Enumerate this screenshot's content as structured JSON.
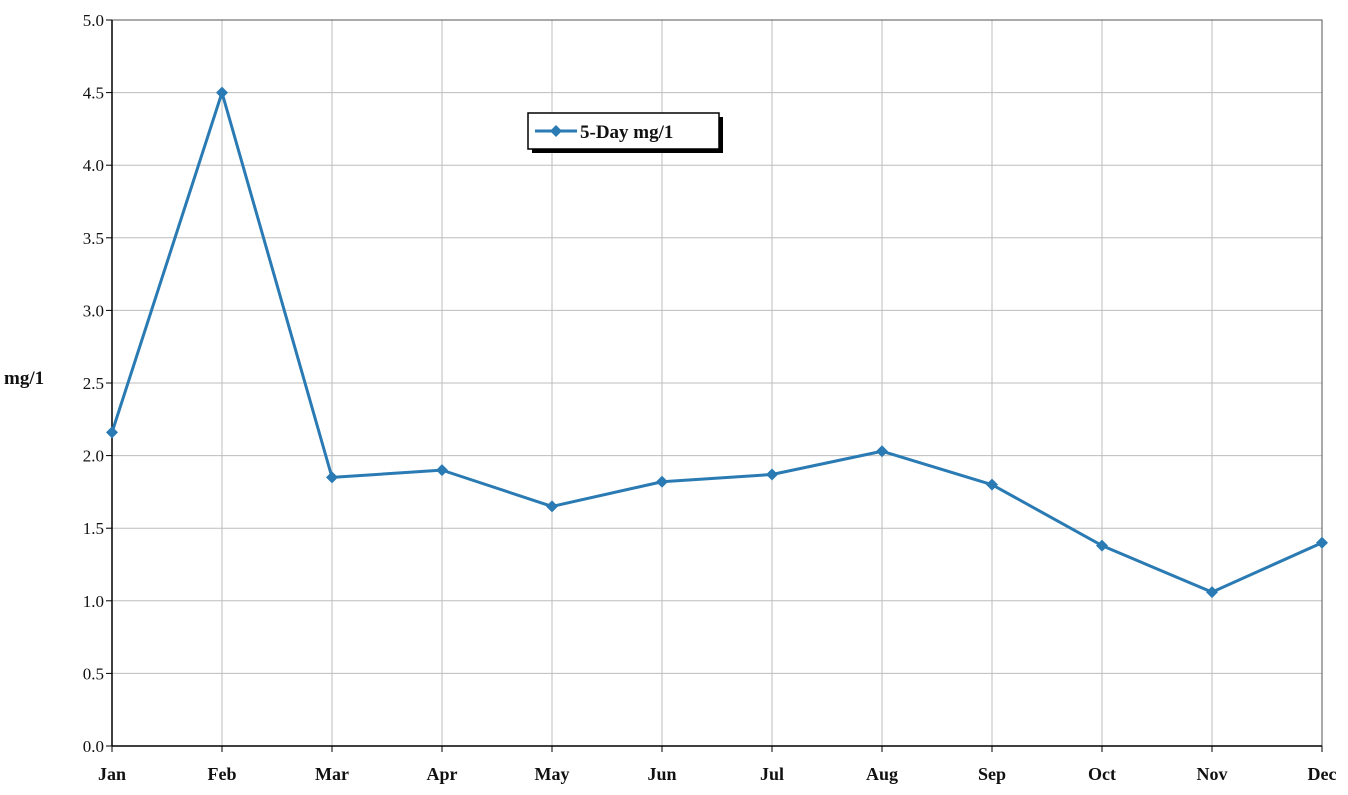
{
  "chart_data": {
    "type": "line",
    "categories": [
      "Jan",
      "Feb",
      "Mar",
      "Apr",
      "May",
      "Jun",
      "Jul",
      "Aug",
      "Sep",
      "Oct",
      "Nov",
      "Dec"
    ],
    "series": [
      {
        "name": "5-Day mg/1",
        "color": "#2a7ab3",
        "values": [
          2.16,
          4.5,
          1.85,
          1.9,
          1.65,
          1.82,
          1.87,
          2.03,
          1.8,
          1.38,
          1.06,
          1.4
        ]
      }
    ],
    "title": "",
    "xlabel": "",
    "ylabel": "mg/1",
    "ylim": [
      0,
      5.0
    ],
    "yticks": [
      "0.0",
      "0.5",
      "1.0",
      "1.5",
      "2.0",
      "2.5",
      "3.0",
      "3.5",
      "4.0",
      "4.5",
      "5.0"
    ],
    "grid": true,
    "legend_position": "top-center"
  }
}
